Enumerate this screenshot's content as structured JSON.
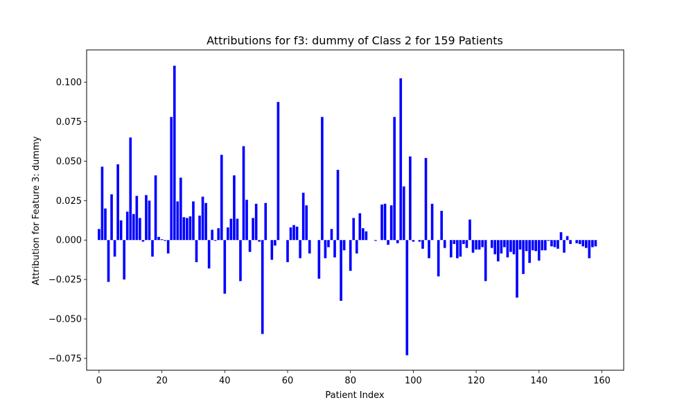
{
  "chart_data": {
    "type": "bar",
    "title": "Attributions for f3: dummy of Class 2 for 159 Patients",
    "xlabel": "Patient Index",
    "ylabel": "Attribution for Feature 3: dummy",
    "xlim": [
      -3.95,
      166.95
    ],
    "ylim": [
      -0.0825,
      0.1205
    ],
    "x_ticks": [
      0,
      20,
      40,
      60,
      80,
      100,
      120,
      140,
      160
    ],
    "y_ticks": [
      -0.075,
      -0.05,
      -0.025,
      0.0,
      0.025,
      0.05,
      0.075,
      0.1
    ],
    "y_tick_labels": [
      "−0.075",
      "−0.050",
      "−0.025",
      "0.000",
      "0.025",
      "0.050",
      "0.075",
      "0.100"
    ],
    "bar_color": "#0000ff",
    "grid": false,
    "x": [
      0,
      1,
      2,
      3,
      4,
      5,
      6,
      7,
      8,
      9,
      10,
      11,
      12,
      13,
      14,
      15,
      16,
      17,
      18,
      19,
      20,
      21,
      22,
      23,
      24,
      25,
      26,
      27,
      28,
      29,
      30,
      31,
      32,
      33,
      34,
      35,
      36,
      37,
      38,
      39,
      40,
      41,
      42,
      43,
      44,
      45,
      46,
      47,
      48,
      49,
      50,
      51,
      52,
      53,
      54,
      55,
      56,
      57,
      58,
      59,
      60,
      61,
      62,
      63,
      64,
      65,
      66,
      67,
      68,
      69,
      70,
      71,
      72,
      73,
      74,
      75,
      76,
      77,
      78,
      79,
      80,
      81,
      82,
      83,
      84,
      85,
      86,
      87,
      88,
      89,
      90,
      91,
      92,
      93,
      94,
      95,
      96,
      97,
      98,
      99,
      100,
      101,
      102,
      103,
      104,
      105,
      106,
      107,
      108,
      109,
      110,
      111,
      112,
      113,
      114,
      115,
      116,
      117,
      118,
      119,
      120,
      121,
      122,
      123,
      124,
      125,
      126,
      127,
      128,
      129,
      130,
      131,
      132,
      133,
      134,
      135,
      136,
      137,
      138,
      139,
      140,
      141,
      142,
      143,
      144,
      145,
      146,
      147,
      148,
      149,
      150,
      151,
      152,
      153,
      154,
      155,
      156,
      157,
      158
    ],
    "values": [
      0.007,
      0.0465,
      0.02,
      -0.0265,
      0.029,
      -0.0105,
      0.048,
      0.0125,
      -0.025,
      0.018,
      0.065,
      0.0165,
      0.028,
      0.014,
      -0.001,
      0.0285,
      0.025,
      -0.0105,
      0.041,
      0.002,
      0.0005,
      -0.0005,
      -0.0085,
      0.078,
      0.1105,
      0.0245,
      0.0395,
      0.0145,
      0.014,
      0.015,
      0.0245,
      -0.014,
      0.0155,
      0.0275,
      0.0235,
      -0.018,
      0.0065,
      -0.0005,
      0.0075,
      0.054,
      -0.034,
      0.008,
      0.0135,
      0.041,
      0.0135,
      -0.026,
      0.0595,
      0.0255,
      -0.0075,
      0.014,
      0.023,
      -0.001,
      -0.0595,
      0.0235,
      0.0,
      -0.0125,
      -0.0035,
      0.0875,
      0.0,
      0.0,
      -0.014,
      0.008,
      0.0095,
      0.0085,
      -0.0115,
      0.03,
      0.022,
      -0.0085,
      0.0,
      0.0,
      -0.0245,
      0.078,
      -0.0115,
      -0.0045,
      0.007,
      -0.011,
      0.0445,
      -0.0385,
      -0.0065,
      0.0,
      -0.0195,
      0.014,
      -0.0085,
      0.017,
      0.0075,
      0.0055,
      0.0,
      0.0,
      -0.0005,
      0.0,
      0.0225,
      0.023,
      -0.003,
      0.022,
      0.078,
      -0.002,
      0.1025,
      0.034,
      -0.073,
      0.053,
      -0.001,
      0.0,
      -0.001,
      -0.0055,
      0.052,
      -0.0115,
      0.023,
      0.0,
      -0.023,
      0.0185,
      -0.005,
      0.0,
      -0.011,
      -0.0025,
      -0.0115,
      -0.0105,
      -0.0025,
      -0.005,
      0.013,
      -0.008,
      -0.006,
      -0.006,
      -0.0045,
      -0.026,
      0.0,
      -0.005,
      -0.009,
      -0.0135,
      -0.0085,
      -0.0045,
      -0.011,
      -0.0075,
      -0.009,
      -0.0365,
      -0.006,
      -0.0215,
      -0.007,
      -0.0145,
      -0.0065,
      -0.007,
      -0.013,
      -0.0065,
      -0.0065,
      -0.0005,
      -0.004,
      -0.0045,
      -0.0055,
      0.005,
      -0.008,
      0.0025,
      -0.0025,
      0.0,
      -0.002,
      -0.0025,
      -0.004,
      -0.005,
      -0.0115,
      -0.0045,
      -0.004
    ]
  }
}
